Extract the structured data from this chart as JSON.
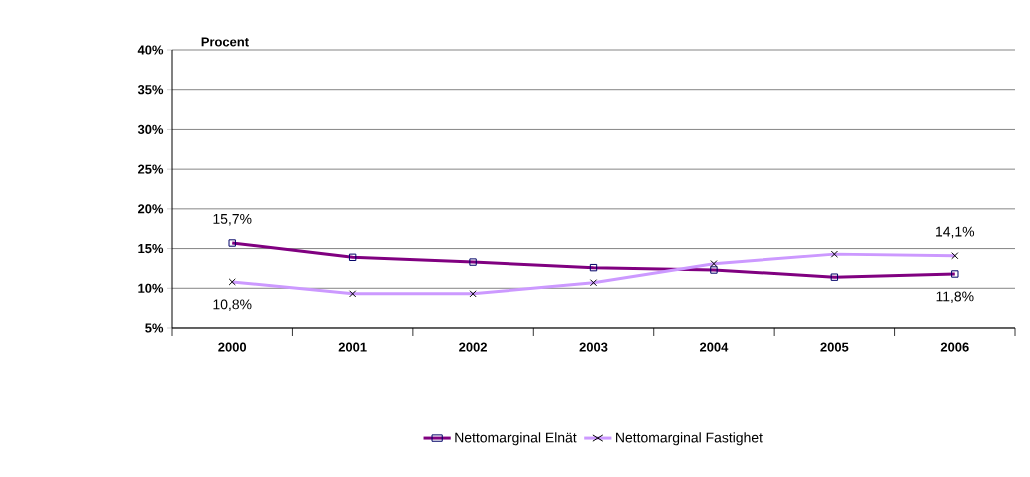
{
  "chart_data": {
    "type": "line",
    "ylabel": "Procent",
    "categories": [
      "2000",
      "2001",
      "2002",
      "2003",
      "2004",
      "2005",
      "2006"
    ],
    "series": [
      {
        "name": "Nettomarginal Elnät",
        "color": "#800080",
        "marker": "square",
        "values": [
          15.7,
          13.9,
          13.3,
          12.6,
          12.3,
          11.4,
          11.8
        ],
        "value_labels": [
          "15,7%",
          null,
          null,
          null,
          null,
          null,
          "11,8%"
        ]
      },
      {
        "name": "Nettomarginal Fastighet",
        "color": "#cc99ff",
        "marker": "cross",
        "values": [
          10.8,
          9.3,
          9.3,
          10.7,
          13.1,
          14.3,
          14.1
        ],
        "value_labels": [
          "10,8%",
          null,
          null,
          null,
          null,
          null,
          "14,1%"
        ]
      }
    ],
    "ylim": [
      5,
      40
    ],
    "yticks": [
      {
        "value": 5,
        "label": "5%"
      },
      {
        "value": 10,
        "label": "10%"
      },
      {
        "value": 15,
        "label": "15%"
      },
      {
        "value": 20,
        "label": "20%"
      },
      {
        "value": 25,
        "label": "25%"
      },
      {
        "value": 30,
        "label": "30%"
      },
      {
        "value": 35,
        "label": "35%"
      },
      {
        "value": 40,
        "label": "40%"
      }
    ],
    "grid": "y",
    "legend": "bottom",
    "line_style": "solid"
  }
}
